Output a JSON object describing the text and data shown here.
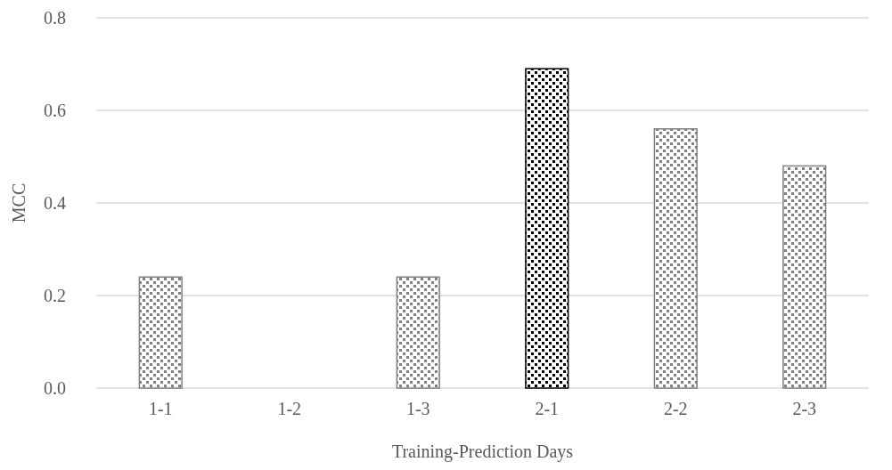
{
  "chart_data": {
    "type": "bar",
    "xlabel": "Training-Prediction Days",
    "ylabel": "MCC",
    "categories": [
      "1-1",
      "1-2",
      "1-3",
      "2-1",
      "2-2",
      "2-3"
    ],
    "values": [
      0.24,
      0,
      0.24,
      0.69,
      0.56,
      0.48
    ],
    "colors": [
      "#808080",
      "#808080",
      "#808080",
      "#000000",
      "#808080",
      "#808080"
    ],
    "ylim": [
      0,
      0.8
    ],
    "yticks": [
      {
        "value": 0,
        "label": "0.0"
      },
      {
        "value": 0.2,
        "label": "0.2"
      },
      {
        "value": 0.4,
        "label": "0.4"
      },
      {
        "value": 0.6,
        "label": "0.6"
      },
      {
        "value": 0.8,
        "label": "0.8"
      }
    ],
    "grid": "y"
  }
}
